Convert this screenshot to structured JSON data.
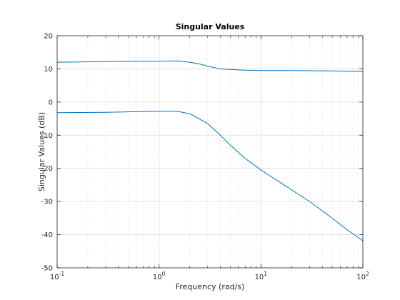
{
  "chart_data": {
    "type": "line",
    "title": "Singular Values",
    "xlabel": "Frequency (rad/s)",
    "ylabel": "Singular Values (dB)",
    "xscale": "log",
    "xlim": [
      0.1,
      100
    ],
    "ylim": [
      -50,
      20
    ],
    "x_ticks": [
      {
        "value": 0.1,
        "base": "10",
        "exp": "-1"
      },
      {
        "value": 1,
        "base": "10",
        "exp": "0"
      },
      {
        "value": 10,
        "base": "10",
        "exp": "1"
      },
      {
        "value": 100,
        "base": "10",
        "exp": "2"
      }
    ],
    "y_ticks": [
      {
        "value": 20,
        "label": "20"
      },
      {
        "value": 10,
        "label": "10"
      },
      {
        "value": 0,
        "label": "0"
      },
      {
        "value": -10,
        "label": "-10"
      },
      {
        "value": -20,
        "label": "-20"
      },
      {
        "value": -30,
        "label": "-30"
      },
      {
        "value": -40,
        "label": "-40"
      },
      {
        "value": -50,
        "label": "-50"
      }
    ],
    "grid": true,
    "minor_grid": true,
    "line_color": "#0072BD",
    "series": [
      {
        "x": [
          0.1,
          0.3,
          0.6,
          1.0,
          1.5,
          2.0,
          2.5,
          3.0,
          4.0,
          5.0,
          7.0,
          10,
          20,
          50,
          100
        ],
        "values": [
          12.0,
          12.2,
          12.3,
          12.3,
          12.4,
          12.0,
          11.5,
          10.8,
          10.0,
          9.8,
          9.6,
          9.5,
          9.5,
          9.4,
          9.2
        ]
      },
      {
        "x": [
          0.1,
          0.3,
          0.6,
          1.0,
          1.5,
          2.0,
          3.0,
          4.0,
          5.0,
          7.0,
          10,
          15,
          20,
          30,
          50,
          70,
          100
        ],
        "values": [
          -3.2,
          -3.1,
          -2.9,
          -2.8,
          -2.8,
          -3.5,
          -6.5,
          -10.0,
          -13.0,
          -17.0,
          -20.5,
          -24.0,
          -26.5,
          -30.0,
          -35.0,
          -38.5,
          -41.8
        ]
      }
    ]
  }
}
